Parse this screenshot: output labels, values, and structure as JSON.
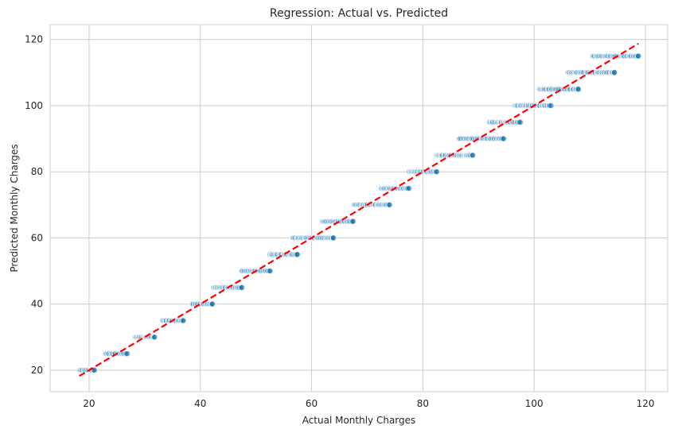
{
  "chart_data": {
    "type": "scatter",
    "title": "Regression: Actual vs. Predicted",
    "xlabel": "Actual Monthly Charges",
    "ylabel": "Predicted Monthly Charges",
    "xlim": [
      13,
      124
    ],
    "ylim": [
      13.5,
      124.5
    ],
    "xticks": [
      20,
      40,
      60,
      80,
      100,
      120
    ],
    "yticks": [
      20,
      40,
      60,
      80,
      100,
      120
    ],
    "grid": true,
    "point_color": "#1f77b4",
    "reference_line": {
      "style": "dashed",
      "color": "#ff0000",
      "from": [
        18.25,
        18.25
      ],
      "to": [
        118.75,
        118.75
      ]
    },
    "series": [
      {
        "levels": [
          {
            "y": 20,
            "x_range": [
              18.25,
              21.0
            ]
          },
          {
            "y": 25,
            "x_range": [
              23.0,
              26.8
            ]
          },
          {
            "y": 30,
            "x_range": [
              28.3,
              31.8
            ]
          },
          {
            "y": 35,
            "x_range": [
              33.3,
              37.0
            ]
          },
          {
            "y": 40,
            "x_range": [
              38.5,
              42.2
            ]
          },
          {
            "y": 45,
            "x_range": [
              42.5,
              47.5
            ]
          },
          {
            "y": 50,
            "x_range": [
              47.5,
              52.5
            ]
          },
          {
            "y": 55,
            "x_range": [
              52.5,
              57.5
            ]
          },
          {
            "y": 60,
            "x_range": [
              56.5,
              64.0
            ]
          },
          {
            "y": 65,
            "x_range": [
              62.0,
              67.5
            ]
          },
          {
            "y": 70,
            "x_range": [
              67.5,
              74.0
            ]
          },
          {
            "y": 75,
            "x_range": [
              72.5,
              77.5
            ]
          },
          {
            "y": 80,
            "x_range": [
              77.5,
              82.5
            ]
          },
          {
            "y": 85,
            "x_range": [
              82.5,
              89.0
            ]
          },
          {
            "y": 90,
            "x_range": [
              86.5,
              94.5
            ]
          },
          {
            "y": 95,
            "x_range": [
              92.0,
              97.5
            ]
          },
          {
            "y": 100,
            "x_range": [
              96.5,
              103.0
            ]
          },
          {
            "y": 105,
            "x_range": [
              101.0,
              108.0
            ]
          },
          {
            "y": 110,
            "x_range": [
              106.0,
              114.5
            ]
          },
          {
            "y": 115,
            "x_range": [
              110.5,
              118.75
            ]
          }
        ]
      }
    ]
  }
}
